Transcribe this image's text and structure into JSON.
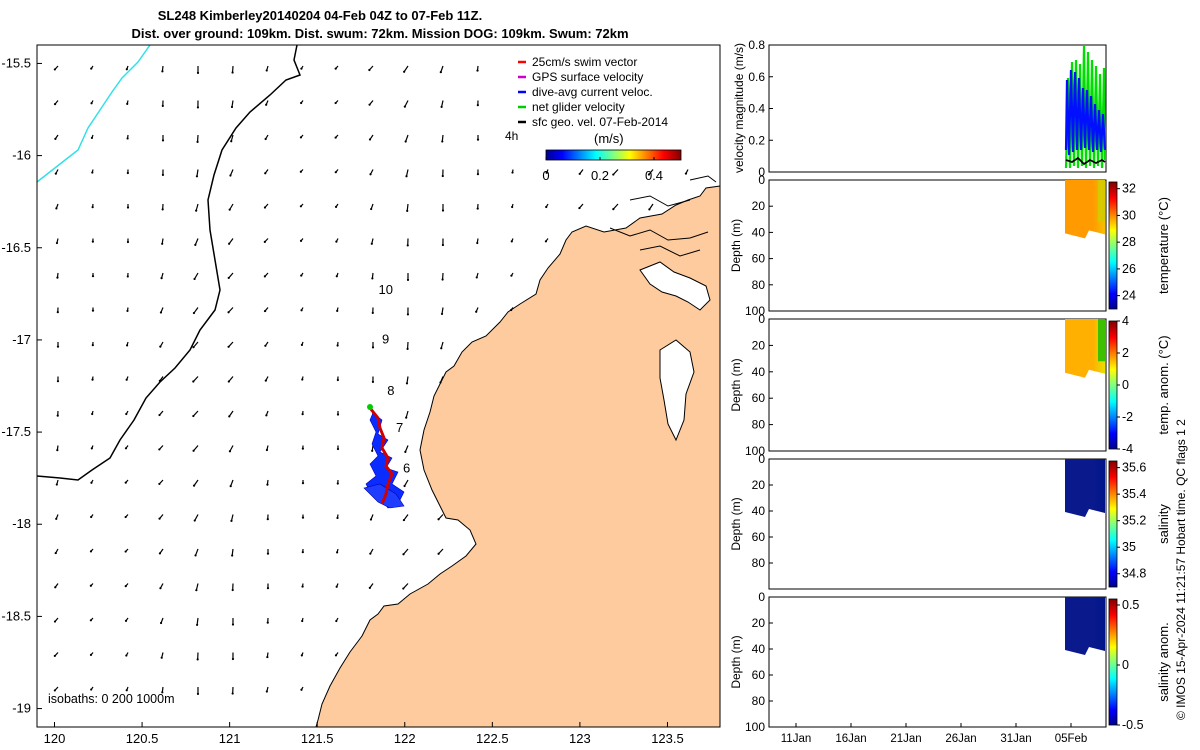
{
  "title": {
    "line1": "SL248 Kimberley20140204 04-Feb 04Z to 07-Feb 11Z.",
    "line2": "Dist. over ground: 109km. Dist. swum: 72km. Mission DOG: 109km. Swum: 72km"
  },
  "chart_data": [
    {
      "type": "map",
      "x_ticks": [
        "120",
        "120.5",
        "121",
        "121.5",
        "122",
        "122.5",
        "123",
        "123.5"
      ],
      "y_ticks": [
        "-15.5",
        "-16",
        "-16.5",
        "-17",
        "-17.5",
        "-18",
        "-18.5",
        "-19"
      ],
      "xlim": [
        119.9,
        123.8
      ],
      "ylim": [
        -19.1,
        -15.4
      ],
      "legend_placement": "top-right",
      "legend": [
        {
          "label": "25cm/s swim vector",
          "color": "#ff0000"
        },
        {
          "label": "GPS surface velocity",
          "color": "#cc00cc"
        },
        {
          "label": "dive-avg current veloc.",
          "color": "#0000ff"
        },
        {
          "label": "net glider velocity",
          "color": "#00cc00"
        },
        {
          "label": "sfc geo. vel. 07-Feb-2014",
          "color": "#000000"
        }
      ],
      "colorbar": {
        "label": "(m/s)",
        "ticks": [
          "0",
          "0.2",
          "0.4"
        ],
        "range": [
          0,
          0.5
        ]
      },
      "time_label": "4h",
      "day_labels": [
        {
          "text": "10",
          "lon": 121.85,
          "lat": -16.75
        },
        {
          "text": "9",
          "lon": 121.87,
          "lat": -17.02
        },
        {
          "text": "8",
          "lon": 121.9,
          "lat": -17.3
        },
        {
          "text": "7",
          "lon": 121.95,
          "lat": -17.5
        },
        {
          "text": "6",
          "lon": 121.99,
          "lat": -17.72
        }
      ],
      "isobaths_label": "isobaths: 0   200  1000m",
      "colors": {
        "land": "#fdcb9e",
        "isobath_200": "#000000",
        "isobath_1000": "#33e0e8"
      }
    },
    {
      "type": "line",
      "ylabel": "velocity magnitude (m/s)",
      "yticks": [
        "0",
        "0.2",
        "0.4",
        "0.6",
        "0.8"
      ],
      "ylim": [
        0,
        0.8
      ]
    },
    {
      "type": "heatmap",
      "ylabel": "Depth (m)",
      "yticks": [
        "0",
        "20",
        "40",
        "60",
        "80",
        "100"
      ],
      "ylim": [
        100,
        0
      ],
      "colorbar_label": "temperature (°C)",
      "colorbar_ticks": [
        "24",
        "26",
        "28",
        "30",
        "32"
      ],
      "colorbar_range": [
        23,
        32.5
      ]
    },
    {
      "type": "heatmap",
      "ylabel": "Depth (m)",
      "yticks": [
        "0",
        "20",
        "40",
        "60",
        "80",
        "100"
      ],
      "ylim": [
        100,
        0
      ],
      "colorbar_label": "temp. anom. (°C)",
      "colorbar_ticks": [
        "-4",
        "-2",
        "0",
        "2",
        "4"
      ],
      "colorbar_range": [
        -4,
        4
      ]
    },
    {
      "type": "heatmap",
      "ylabel": "Depth (m)",
      "yticks": [
        "0",
        "20",
        "40",
        "60",
        "80"
      ],
      "ylim": [
        100,
        0
      ],
      "colorbar_label": "salinity",
      "colorbar_ticks": [
        "34.8",
        "35",
        "35.2",
        "35.4",
        "35.6"
      ],
      "colorbar_range": [
        34.7,
        35.65
      ]
    },
    {
      "type": "heatmap",
      "ylabel": "Depth (m)",
      "yticks": [
        "0",
        "20",
        "40",
        "60",
        "80",
        "100"
      ],
      "ylim": [
        100,
        0
      ],
      "colorbar_label": "salinity anom.",
      "colorbar_ticks": [
        "-0.5",
        "0",
        "0.5"
      ],
      "colorbar_range": [
        -0.5,
        0.55
      ],
      "x_ticks": [
        "11Jan",
        "16Jan",
        "21Jan",
        "26Jan",
        "31Jan",
        "05Feb"
      ]
    }
  ],
  "footer": "© IMOS 15-Apr-2024 11:21:57 Hobart time. QC flags 1  2"
}
